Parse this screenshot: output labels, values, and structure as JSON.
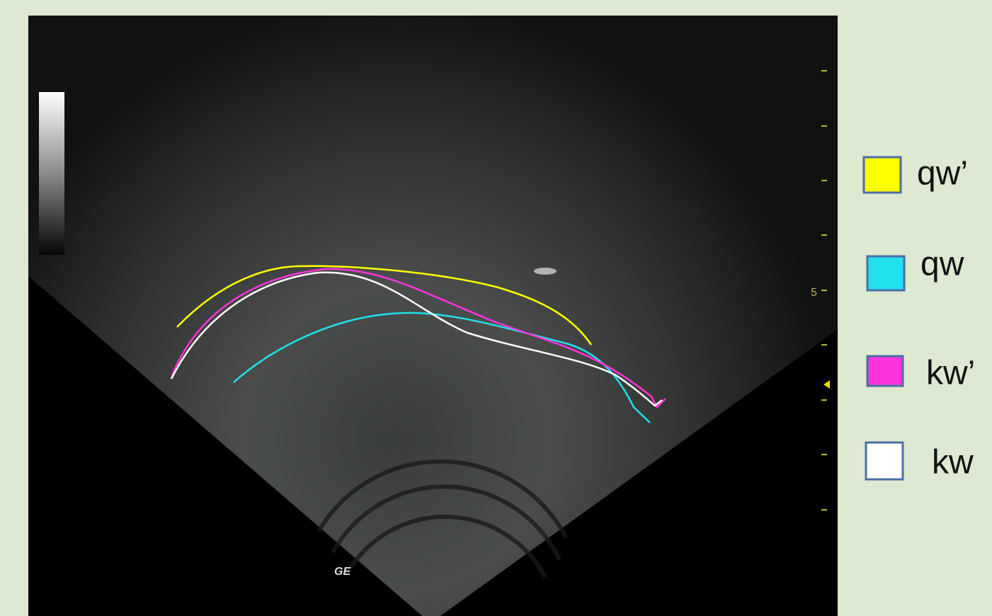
{
  "legend": {
    "items": [
      {
        "label": "qw’",
        "color": "#ffff00"
      },
      {
        "label": "qw",
        "color": "#22e0ee"
      },
      {
        "label": "kw’",
        "color": "#ff33dd"
      },
      {
        "label": "kw",
        "color": "#ffffff"
      }
    ]
  },
  "image": {
    "depth_label": "5",
    "logo": "GE"
  }
}
